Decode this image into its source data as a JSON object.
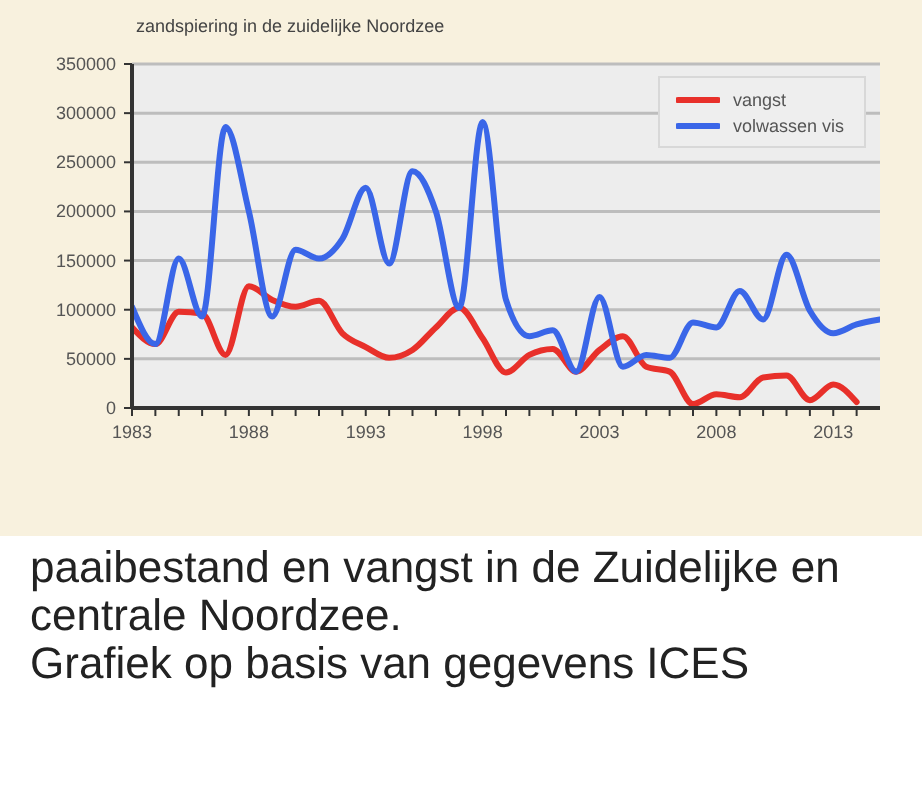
{
  "chart_data": {
    "type": "line",
    "title": "zandspiering in de zuidelijke Noordzee",
    "annotations": [
      "paaibestand en vangst in de Zuidelijke en centrale Noordzee.",
      "Grafiek op basis van gegevens ICES"
    ],
    "x": [
      1983,
      1984,
      1985,
      1986,
      1987,
      1988,
      1989,
      1990,
      1991,
      1992,
      1993,
      1994,
      1995,
      1996,
      1997,
      1998,
      1999,
      2000,
      2001,
      2002,
      2003,
      2004,
      2005,
      2006,
      2007,
      2008,
      2009,
      2010,
      2011,
      2012,
      2013,
      2014,
      2015
    ],
    "series": [
      {
        "name": "vangst",
        "color": "#e8302a",
        "values": [
          82000,
          65000,
          98000,
          96000,
          54000,
          124000,
          110000,
          103000,
          109000,
          76000,
          62000,
          51000,
          59000,
          82000,
          102000,
          71000,
          36000,
          54000,
          60000,
          37000,
          59000,
          73000,
          42000,
          37000,
          4000,
          14000,
          11000,
          31000,
          33000,
          8000,
          24000,
          6000,
          null
        ]
      },
      {
        "name": "volwassen vis",
        "color": "#3a66e8",
        "values": [
          103000,
          65000,
          152000,
          93000,
          286000,
          200000,
          93000,
          161000,
          152000,
          172000,
          224000,
          147000,
          241000,
          200000,
          102000,
          291000,
          110000,
          73000,
          79000,
          37000,
          113000,
          42000,
          54000,
          51000,
          87000,
          82000,
          119000,
          90000,
          156000,
          99000,
          76000,
          85000,
          90000
        ]
      }
    ],
    "xlim": [
      1983,
      2015
    ],
    "xticks": [
      1983,
      {
        "value": 1984,
        "label": null
      },
      {
        "value": 1985,
        "label": null
      },
      {
        "value": 1986,
        "label": null
      },
      {
        "value": 1987,
        "label": null
      },
      1988,
      {
        "value": 1989,
        "label": null
      },
      {
        "value": 1990,
        "label": null
      },
      {
        "value": 1991,
        "label": null
      },
      {
        "value": 1992,
        "label": null
      },
      1993,
      {
        "value": 1994,
        "label": null
      },
      {
        "value": 1995,
        "label": null
      },
      {
        "value": 1996,
        "label": null
      },
      {
        "value": 1997,
        "label": null
      },
      1998,
      {
        "value": 1999,
        "label": null
      },
      {
        "value": 2000,
        "label": null
      },
      {
        "value": 2001,
        "label": null
      },
      {
        "value": 2002,
        "label": null
      },
      2003,
      {
        "value": 2004,
        "label": null
      },
      {
        "value": 2005,
        "label": null
      },
      {
        "value": 2006,
        "label": null
      },
      {
        "value": 2007,
        "label": null
      },
      2008,
      {
        "value": 2009,
        "label": null
      },
      {
        "value": 2010,
        "label": null
      },
      {
        "value": 2011,
        "label": null
      },
      {
        "value": 2012,
        "label": null
      },
      2013,
      {
        "value": 2014,
        "label": null
      }
    ],
    "ylim": [
      0,
      350000
    ],
    "yticks": [
      0,
      50000,
      100000,
      150000,
      200000,
      250000,
      300000,
      350000
    ],
    "grid": "y",
    "legend": "top right"
  }
}
